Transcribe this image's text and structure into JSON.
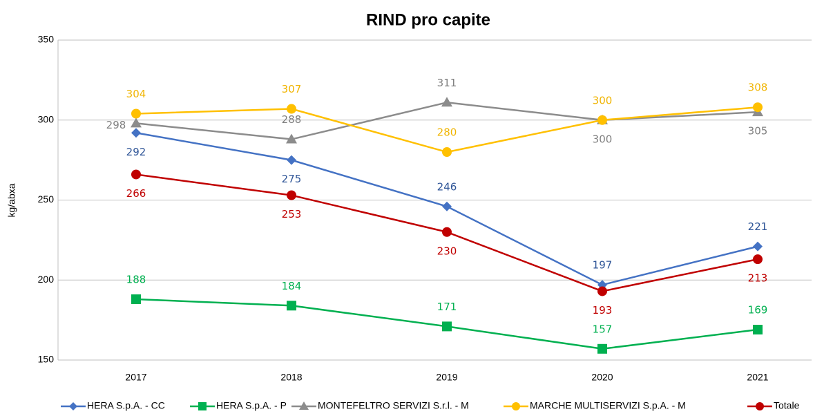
{
  "chart_data": {
    "type": "line",
    "title": "RIND pro capite",
    "y_label": "kg/abxa",
    "categories": [
      "2017",
      "2018",
      "2019",
      "2020",
      "2021"
    ],
    "series": [
      {
        "name": "HERA S.p.A. - CC",
        "color": "#4472c4",
        "marker": "diamond",
        "values": [
          292,
          275,
          246,
          197,
          221
        ]
      },
      {
        "name": "HERA S.p.A. - P",
        "color": "#00b050",
        "marker": "square",
        "values": [
          188,
          184,
          171,
          157,
          169
        ]
      },
      {
        "name": "MONTEFELTRO SERVIZI  S.r.l. - M",
        "color": "#8c8c8c",
        "marker": "triangle",
        "values": [
          298,
          288,
          311,
          300,
          305
        ]
      },
      {
        "name": "MARCHE MULTISERVIZI S.p.A. - M",
        "color": "#ffc000",
        "marker": "circle",
        "values": [
          304,
          307,
          280,
          300,
          308
        ]
      },
      {
        "name": "Totale",
        "color": "#c00000",
        "marker": "circle",
        "values": [
          266,
          253,
          230,
          193,
          213
        ]
      }
    ],
    "ylim": [
      150,
      350
    ],
    "yticks": [
      150,
      200,
      250,
      300,
      350
    ],
    "grid": true,
    "legend": "bottom"
  }
}
